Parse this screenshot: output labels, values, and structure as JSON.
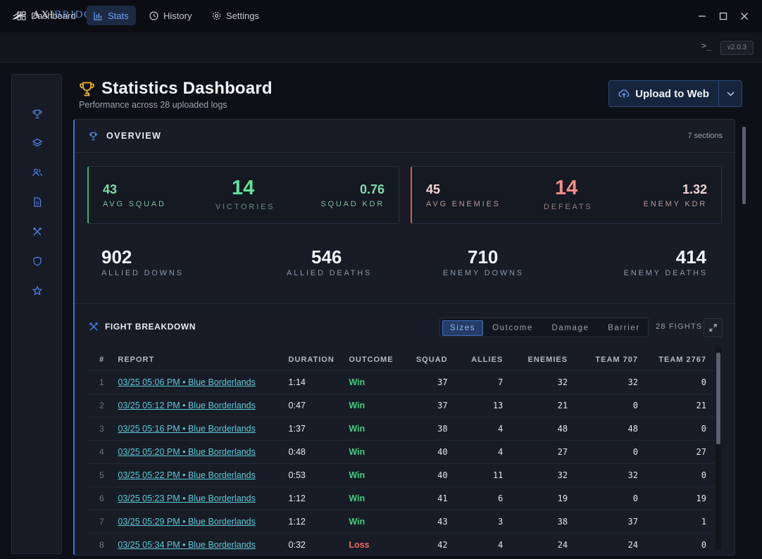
{
  "app": {
    "logo_part1": "AXI",
    "logo_part2": "BRIDGE",
    "version": "v2.0.3"
  },
  "nav": {
    "tabs": [
      {
        "label": "Dashboard",
        "icon": "grid-icon"
      },
      {
        "label": "Stats",
        "icon": "bar-chart-icon",
        "active": true
      },
      {
        "label": "History",
        "icon": "clock-icon"
      },
      {
        "label": "Settings",
        "icon": "gear-icon"
      }
    ]
  },
  "rail": {
    "icons": [
      "trophy-icon",
      "layers-icon",
      "users-icon",
      "document-icon",
      "swords-icon",
      "shield-icon",
      "star-icon"
    ]
  },
  "header": {
    "title": "Statistics Dashboard",
    "subtitle": "Performance across 28 uploaded logs",
    "upload_label": "Upload to Web"
  },
  "overview": {
    "title": "OVERVIEW",
    "sections": "7 sections",
    "squad_card": {
      "avg_squad": "43",
      "avg_squad_label": "AVG SQUAD",
      "victories": "14",
      "victories_label": "VICTORIES",
      "kdr": "0.76",
      "kdr_label": "SQUAD KDR"
    },
    "enemy_card": {
      "avg_enemies": "45",
      "avg_enemies_label": "AVG ENEMIES",
      "defeats": "14",
      "defeats_label": "DEFEATS",
      "kdr": "1.32",
      "kdr_label": "ENEMY KDR"
    },
    "totals": [
      {
        "value": "902",
        "label": "ALLIED DOWNS"
      },
      {
        "value": "546",
        "label": "ALLIED DEATHS"
      },
      {
        "value": "710",
        "label": "ENEMY DOWNS"
      },
      {
        "value": "414",
        "label": "ENEMY DEATHS"
      }
    ]
  },
  "breakdown": {
    "title": "FIGHT BREAKDOWN",
    "segments": [
      "Sizes",
      "Outcome",
      "Damage",
      "Barrier"
    ],
    "active_segment": "Sizes",
    "fights_count": "28 FIGHTS",
    "columns": [
      "#",
      "REPORT",
      "DURATION",
      "OUTCOME",
      "SQUAD",
      "ALLIES",
      "ENEMIES",
      "TEAM 707",
      "TEAM 2767"
    ],
    "rows": [
      {
        "idx": "1",
        "report": "03/25 05:06 PM • Blue Borderlands",
        "duration": "1:14",
        "outcome": "Win",
        "squad": "37",
        "allies": "7",
        "enemies": "32",
        "team707": "32",
        "team2767": "0"
      },
      {
        "idx": "2",
        "report": "03/25 05:12 PM • Blue Borderlands",
        "duration": "0:47",
        "outcome": "Win",
        "squad": "37",
        "allies": "13",
        "enemies": "21",
        "team707": "0",
        "team2767": "21"
      },
      {
        "idx": "3",
        "report": "03/25 05:16 PM • Blue Borderlands",
        "duration": "1:37",
        "outcome": "Win",
        "squad": "38",
        "allies": "4",
        "enemies": "48",
        "team707": "48",
        "team2767": "0"
      },
      {
        "idx": "4",
        "report": "03/25 05:20 PM • Blue Borderlands",
        "duration": "0:48",
        "outcome": "Win",
        "squad": "40",
        "allies": "4",
        "enemies": "27",
        "team707": "0",
        "team2767": "27"
      },
      {
        "idx": "5",
        "report": "03/25 05:22 PM • Blue Borderlands",
        "duration": "0:53",
        "outcome": "Win",
        "squad": "40",
        "allies": "11",
        "enemies": "32",
        "team707": "32",
        "team2767": "0"
      },
      {
        "idx": "6",
        "report": "03/25 05:23 PM • Blue Borderlands",
        "duration": "1:12",
        "outcome": "Win",
        "squad": "41",
        "allies": "6",
        "enemies": "19",
        "team707": "0",
        "team2767": "19"
      },
      {
        "idx": "7",
        "report": "03/25 05:29 PM • Blue Borderlands",
        "duration": "1:12",
        "outcome": "Win",
        "squad": "43",
        "allies": "3",
        "enemies": "38",
        "team707": "37",
        "team2767": "1"
      },
      {
        "idx": "8",
        "report": "03/25 05:34 PM • Blue Borderlands",
        "duration": "0:32",
        "outcome": "Loss",
        "squad": "42",
        "allies": "4",
        "enemies": "24",
        "team707": "24",
        "team2767": "0"
      }
    ]
  },
  "colors": {
    "accent": "#3d75e0",
    "win": "#46cc7e",
    "loss": "#ef6b6b",
    "link": "#5ec9d6"
  }
}
